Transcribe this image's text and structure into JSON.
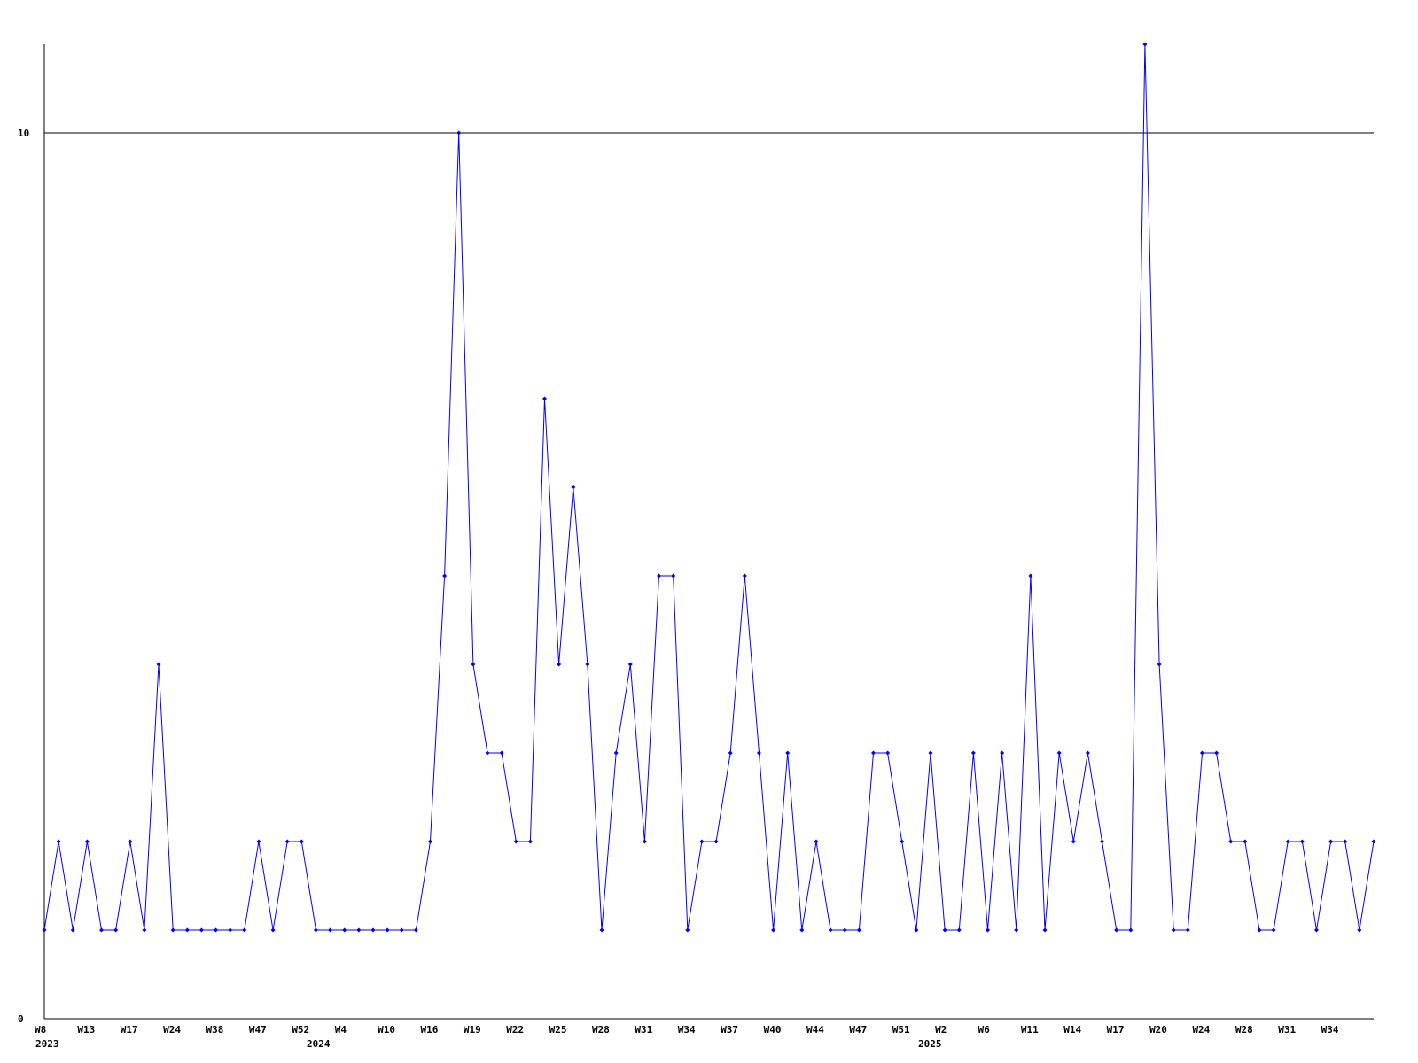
{
  "chart_data": {
    "type": "line",
    "title": "",
    "xlabel": "",
    "ylabel": "",
    "ylim": [
      0,
      11
    ],
    "y_ticks": [
      0,
      10
    ],
    "y_tick_labels": [
      "0",
      "10"
    ],
    "grid": "horizontal line at 10",
    "colors": {
      "series": "#0000ff",
      "axis": "#000000",
      "background": "#ffffff"
    },
    "x_tick_labels": [
      "W8",
      "W13",
      "W17",
      "W24",
      "W38",
      "W47",
      "W52",
      "W4",
      "W10",
      "W16",
      "W19",
      "W22",
      "W25",
      "W28",
      "W31",
      "W34",
      "W37",
      "W40",
      "W44",
      "W47",
      "W51",
      "W2",
      "W6",
      "W11",
      "W14",
      "W17",
      "W20",
      "W24",
      "W28",
      "W31",
      "W34"
    ],
    "x_tick_every": 3,
    "year_labels": [
      "2023",
      "2024",
      "2025"
    ],
    "series": [
      {
        "values": [
          1,
          2,
          1,
          2,
          1,
          1,
          2,
          1,
          4,
          1,
          1,
          1,
          1,
          1,
          1,
          2,
          1,
          2,
          2,
          1,
          1,
          1,
          1,
          1,
          1,
          1,
          1,
          2,
          5,
          10,
          4,
          3,
          3,
          2,
          2,
          7,
          4,
          6,
          4,
          1,
          3,
          4,
          2,
          5,
          5,
          1,
          2,
          2,
          3,
          5,
          3,
          1,
          3,
          1,
          2,
          1,
          1,
          1,
          3,
          3,
          2,
          1,
          3,
          1,
          1,
          3,
          1,
          3,
          1,
          5,
          1,
          3,
          2,
          3,
          2,
          1,
          1,
          11,
          4,
          1,
          1,
          3,
          3,
          2,
          2,
          1,
          1,
          2,
          2,
          1,
          2,
          2,
          1,
          2
        ]
      }
    ]
  }
}
